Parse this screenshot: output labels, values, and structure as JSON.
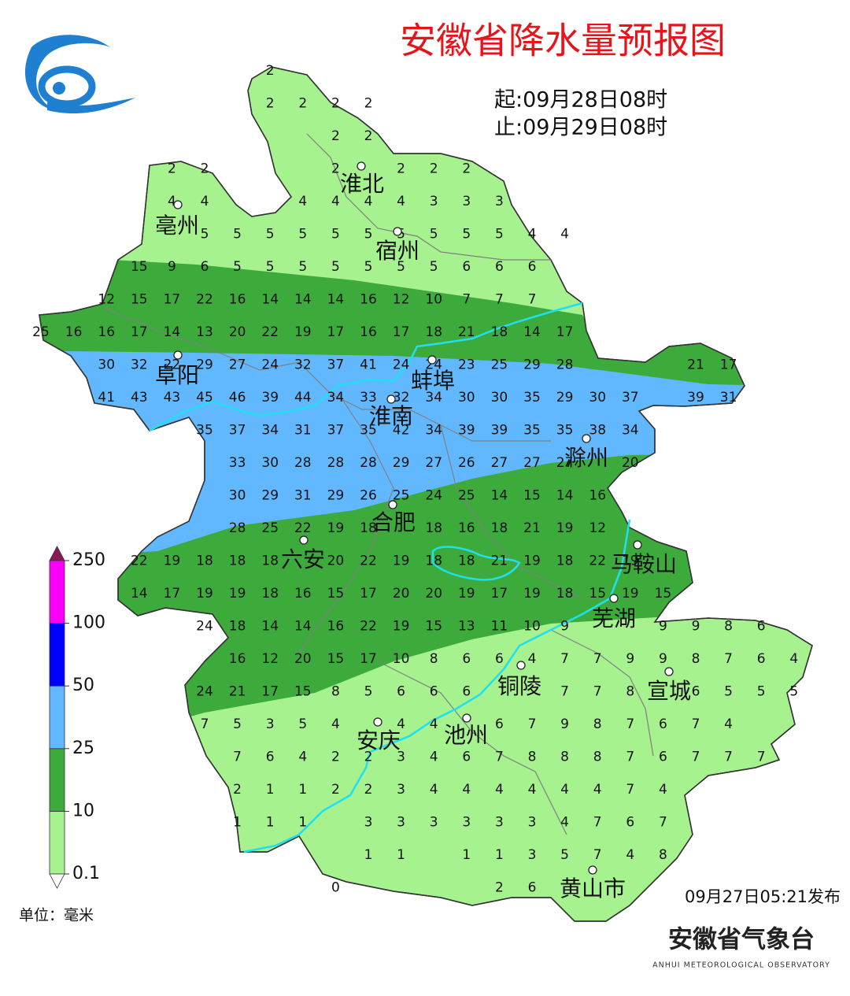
{
  "title": "安徽省降水量预报图",
  "period": {
    "start": "起:09月28日08时",
    "end": "止:09月29日08时"
  },
  "cities": [
    "淮北",
    "亳州",
    "宿州",
    "阜阳",
    "蚌埠",
    "淮南",
    "滁州",
    "合肥",
    "六安",
    "马鞍山",
    "芜湖",
    "铜陵",
    "宣城",
    "安庆",
    "池州",
    "黄山市"
  ],
  "grid_values": [
    [
      null,
      null,
      null,
      null,
      null,
      null,
      null,
      2
    ],
    [
      null,
      null,
      null,
      null,
      null,
      null,
      null,
      2,
      2,
      2,
      2
    ],
    [
      null,
      null,
      null,
      null,
      null,
      null,
      null,
      null,
      null,
      2,
      2
    ],
    [
      null,
      null,
      null,
      null,
      2,
      2,
      null,
      null,
      null,
      2,
      null,
      2,
      2,
      2
    ],
    [
      null,
      null,
      null,
      null,
      4,
      4,
      null,
      null,
      4,
      4,
      4,
      4,
      3,
      3,
      3
    ],
    [
      null,
      null,
      null,
      null,
      null,
      5,
      5,
      5,
      5,
      5,
      5,
      5,
      5,
      5,
      5,
      4,
      4
    ],
    [
      null,
      null,
      null,
      15,
      9,
      6,
      5,
      5,
      5,
      5,
      5,
      5,
      5,
      6,
      6,
      6
    ],
    [
      null,
      null,
      12,
      15,
      17,
      22,
      16,
      14,
      14,
      14,
      16,
      12,
      10,
      7,
      7,
      7
    ],
    [
      25,
      16,
      16,
      17,
      14,
      13,
      20,
      22,
      19,
      17,
      16,
      17,
      18,
      21,
      18,
      14,
      17
    ],
    [
      null,
      null,
      30,
      32,
      22,
      29,
      27,
      24,
      32,
      37,
      41,
      24,
      24,
      23,
      25,
      29,
      28,
      null,
      null,
      null,
      21,
      17
    ],
    [
      null,
      null,
      41,
      43,
      43,
      45,
      46,
      39,
      44,
      34,
      33,
      32,
      34,
      30,
      30,
      35,
      29,
      30,
      37,
      null,
      39,
      31
    ],
    [
      null,
      null,
      null,
      null,
      null,
      35,
      37,
      34,
      31,
      37,
      35,
      42,
      34,
      39,
      39,
      35,
      35,
      38,
      34
    ],
    [
      null,
      null,
      null,
      null,
      null,
      null,
      33,
      30,
      28,
      28,
      28,
      29,
      27,
      26,
      27,
      27,
      27,
      null,
      20
    ],
    [
      null,
      null,
      null,
      null,
      null,
      null,
      30,
      29,
      31,
      29,
      26,
      25,
      24,
      25,
      14,
      15,
      14,
      16
    ],
    [
      null,
      null,
      null,
      null,
      null,
      null,
      28,
      25,
      22,
      19,
      18,
      null,
      18,
      16,
      18,
      21,
      19,
      12
    ],
    [
      null,
      null,
      null,
      22,
      19,
      18,
      18,
      18,
      null,
      20,
      22,
      19,
      18,
      18,
      21,
      19,
      18,
      22,
      19
    ],
    [
      null,
      null,
      null,
      14,
      17,
      19,
      19,
      18,
      16,
      15,
      17,
      20,
      20,
      19,
      17,
      19,
      18,
      15,
      19,
      15
    ],
    [
      null,
      null,
      null,
      null,
      null,
      24,
      18,
      14,
      14,
      16,
      22,
      19,
      15,
      13,
      11,
      10,
      9,
      null,
      null,
      9,
      9,
      8,
      6
    ],
    [
      null,
      null,
      null,
      null,
      null,
      null,
      16,
      12,
      20,
      15,
      17,
      10,
      8,
      6,
      6,
      4,
      7,
      7,
      9,
      9,
      8,
      7,
      6,
      4
    ],
    [
      null,
      null,
      null,
      null,
      null,
      24,
      21,
      17,
      15,
      8,
      5,
      6,
      6,
      6,
      null,
      null,
      7,
      7,
      8,
      null,
      6,
      5,
      5,
      5
    ],
    [
      null,
      null,
      null,
      null,
      null,
      7,
      5,
      3,
      5,
      4,
      null,
      4,
      4,
      null,
      6,
      7,
      9,
      8,
      7,
      6,
      7,
      4
    ],
    [
      null,
      null,
      null,
      null,
      null,
      null,
      7,
      6,
      4,
      2,
      2,
      3,
      4,
      6,
      7,
      8,
      8,
      8,
      7,
      6,
      7,
      7,
      7
    ],
    [
      null,
      null,
      null,
      null,
      null,
      null,
      2,
      1,
      1,
      2,
      2,
      3,
      4,
      4,
      4,
      4,
      4,
      4,
      7,
      4
    ],
    [
      null,
      null,
      null,
      null,
      null,
      null,
      1,
      1,
      1,
      null,
      3,
      3,
      3,
      3,
      3,
      3,
      4,
      7,
      6,
      7
    ],
    [
      null,
      null,
      null,
      null,
      null,
      null,
      null,
      null,
      null,
      null,
      1,
      1,
      null,
      1,
      1,
      3,
      5,
      7,
      4,
      8
    ],
    [
      null,
      null,
      null,
      null,
      null,
      null,
      null,
      null,
      null,
      0,
      null,
      null,
      null,
      null,
      2,
      6
    ]
  ],
  "legend": {
    "levels": [
      0.1,
      10,
      25,
      50,
      100,
      250
    ],
    "colors": [
      "#a6f28f",
      "#3cab3c",
      "#62b8ff",
      "#0000fe",
      "#fa00fa"
    ],
    "unit": "单位：毫米"
  },
  "issued": "09月27日05:21发布",
  "agency": {
    "name": "安徽省气象台",
    "english": "ANHUI METEOROLOGICAL OBSERVATORY"
  }
}
